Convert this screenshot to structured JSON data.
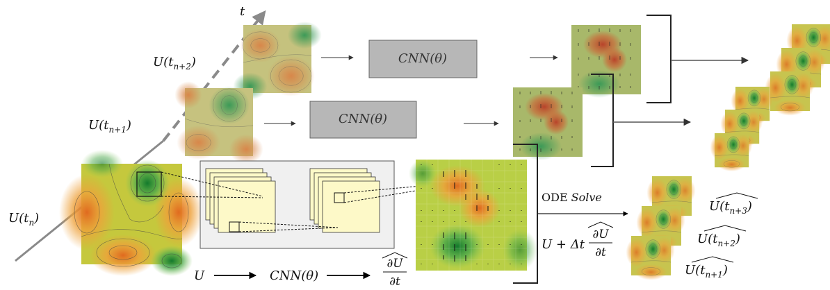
{
  "axis": {
    "time_label": "t"
  },
  "inputs": {
    "u_tn": "U(t",
    "u_tn_sub": "n",
    "u_tn1": "U(t",
    "u_tn1_sub": "n+1",
    "u_tn2": "U(t",
    "u_tn2_sub": "n+2"
  },
  "cnn": {
    "label": "CNN(θ)"
  },
  "pipeline": {
    "u": "U",
    "cnn": "CNN(θ)",
    "dudt_num": "∂U",
    "dudt_den": "∂t"
  },
  "ode": {
    "title_plain": "ODE",
    "title_italic": "Solve",
    "update_prefix": "U + Δt",
    "update_num": "∂U",
    "update_den": "∂t"
  },
  "outputs": [
    {
      "prefix": "U(t",
      "sub": "n+3"
    },
    {
      "prefix": "U(t",
      "sub": "n+2"
    },
    {
      "prefix": "U(t",
      "sub": "n+1"
    }
  ],
  "colors": {
    "cnn_box": "#b7b7b7",
    "feature_map": "#fdf9c8",
    "conv_panel": "#f0f0f0",
    "arrow": "#333333"
  }
}
